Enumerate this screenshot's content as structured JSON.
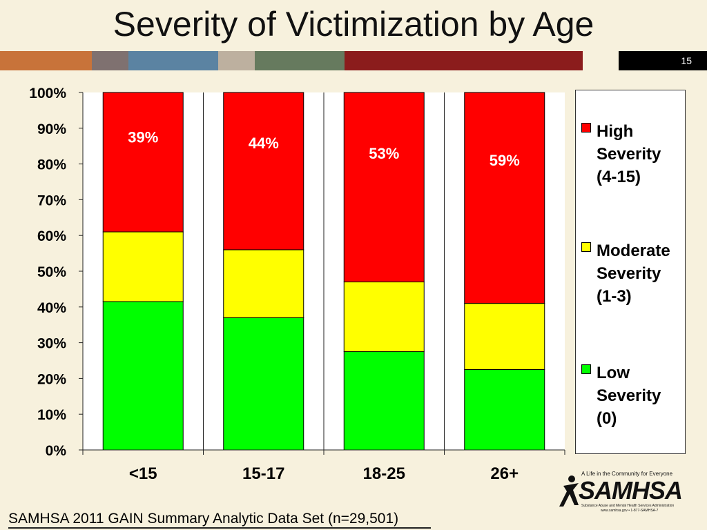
{
  "slide": {
    "title": "Severity of Victimization by Age",
    "number": "15",
    "footer": "SAMHSA 2011 GAIN Summary Analytic Data Set (n=29,501)",
    "strip_colors": [
      "#c8733a",
      "#7f7170",
      "#5b83a2",
      "#bdb09f",
      "#667a5e",
      "#8b1c1c",
      "#f7f1dd"
    ]
  },
  "logo": {
    "tagline": "A Life in the Community for Everyone",
    "name": "SAMHSA",
    "subtitle": "Substance Abuse and Mental Health Services Administration",
    "contact": "www.samhsa.gov • 1-877-SAMHSA-7"
  },
  "chart_data": {
    "type": "bar",
    "stacked": true,
    "title": "",
    "xlabel": "",
    "ylabel": "",
    "ylim": [
      0,
      100
    ],
    "y_ticks": [
      "0%",
      "10%",
      "20%",
      "30%",
      "40%",
      "50%",
      "60%",
      "70%",
      "80%",
      "90%",
      "100%"
    ],
    "categories": [
      "<15",
      "15-17",
      "18-25",
      "26+"
    ],
    "series": [
      {
        "name": "Low Severity (0)",
        "legend_label": "Low\nSeverity\n(0)",
        "color": "#00ff00",
        "values": [
          41.5,
          37,
          27.5,
          22.5
        ]
      },
      {
        "name": "Moderate Severity (1-3)",
        "legend_label": "Moderate\nSeverity\n(1-3)",
        "color": "#ffff00",
        "values": [
          19.5,
          19,
          19.5,
          18.5
        ]
      },
      {
        "name": "High Severity (4-15)",
        "legend_label": "High\nSeverity\n(4-15)",
        "color": "#ff0000",
        "values": [
          39,
          44,
          53,
          59
        ]
      }
    ],
    "data_labels": [
      "39%",
      "44%",
      "53%",
      "59%"
    ],
    "grid": false,
    "legend_position": "right"
  }
}
